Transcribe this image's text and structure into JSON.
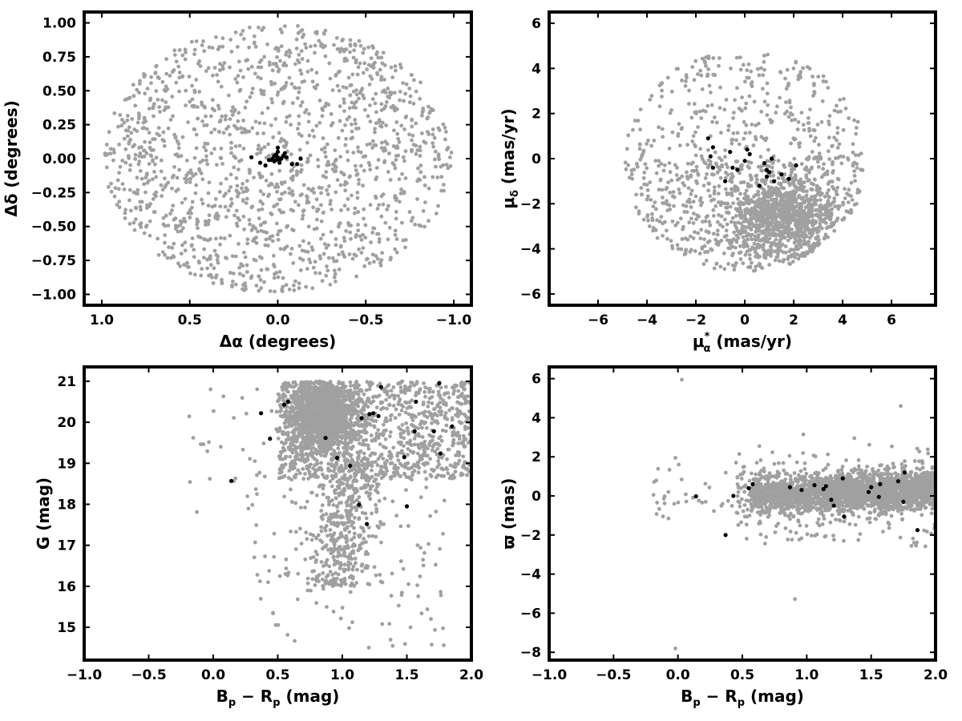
{
  "chart_data": [
    {
      "type": "scatter",
      "panel": "top-left",
      "xlabel": "Δα (degrees)",
      "ylabel": "Δδ (degrees)",
      "xlim": [
        1.1,
        -1.1
      ],
      "ylim": [
        -1.08,
        1.08
      ],
      "x_inverted": true,
      "xticks": [
        "1.0",
        "0.5",
        "0.0",
        "−0.5",
        "−1.0"
      ],
      "xtick_values": [
        1.0,
        0.5,
        0.0,
        -0.5,
        -1.0
      ],
      "yticks": [
        "−1.00",
        "−0.75",
        "−0.50",
        "−0.25",
        "0.00",
        "0.25",
        "0.50",
        "0.75",
        "1.00"
      ],
      "ytick_values": [
        -1.0,
        -0.75,
        -0.5,
        -0.25,
        0.0,
        0.25,
        0.5,
        0.75,
        1.0
      ],
      "series": [
        {
          "role": "field stars",
          "color": "#a0a0a0",
          "distribution": "uniform disk of radius 1.0 deg centered at (0,0)"
        },
        {
          "role": "members",
          "color": "#000000",
          "x": [
            0.15,
            0.1,
            0.07,
            0.05,
            0.03,
            0.02,
            0.01,
            0.0,
            -0.01,
            -0.02,
            -0.03,
            -0.05,
            -0.08,
            -0.11,
            -0.13,
            0.0,
            0.02,
            -0.01,
            0.04,
            -0.04,
            0.01,
            0.0,
            -0.02
          ],
          "y": [
            0.01,
            -0.03,
            -0.05,
            -0.01,
            0.0,
            0.02,
            0.03,
            0.01,
            -0.01,
            0.0,
            0.02,
            0.01,
            -0.04,
            -0.04,
            0.0,
            0.08,
            -0.02,
            -0.03,
            -0.01,
            0.04,
            -0.01,
            0.05,
            0.0
          ]
        }
      ]
    },
    {
      "type": "scatter",
      "panel": "top-right",
      "xlabel": "μα* (mas/yr)",
      "xlabel_main": "μ",
      "xlabel_sub": "α",
      "xlabel_sup": "*",
      "xlabel_unit": " (mas/yr)",
      "ylabel": "μδ (mas/yr)",
      "ylabel_main": "μ",
      "ylabel_sub": "δ",
      "ylabel_unit": " (mas/yr)",
      "xlim": [
        -8,
        7.8
      ],
      "ylim": [
        -6.5,
        6.5
      ],
      "xticks": [
        "−6",
        "−4",
        "−2",
        "0",
        "2",
        "4",
        "6"
      ],
      "xtick_values": [
        -6,
        -4,
        -2,
        0,
        2,
        4,
        6
      ],
      "yticks": [
        "−6",
        "−4",
        "−2",
        "0",
        "2",
        "4",
        "6"
      ],
      "ytick_values": [
        -6,
        -4,
        -2,
        0,
        2,
        4,
        6
      ],
      "series": [
        {
          "role": "field stars",
          "color": "#a0a0a0",
          "distribution": "disk of radius ~5 mas/yr centered at (0,0), dense clump near (1.5,-2.5)"
        },
        {
          "role": "members",
          "color": "#000000",
          "x": [
            -1.5,
            -1.3,
            -1.4,
            -0.6,
            0.1,
            0.2,
            -0.5,
            -0.3,
            0.6,
            0.9,
            1.0,
            1.2,
            1.5,
            1.8,
            2.1,
            -0.8,
            0.0,
            0.8,
            1.1,
            -1.3,
            0.9
          ],
          "y": [
            0.9,
            0.5,
            0.1,
            0.3,
            0.4,
            0.2,
            -0.4,
            -0.5,
            -1.2,
            -0.8,
            -0.6,
            -1.0,
            -0.7,
            -0.9,
            -0.3,
            -1.0,
            -0.1,
            -0.2,
            0.0,
            -0.4,
            -0.5
          ]
        }
      ]
    },
    {
      "type": "scatter",
      "panel": "bottom-left",
      "xlabel": "Bp − Rp (mag)",
      "xlabel_parts": [
        "B",
        "p",
        " − R",
        "p",
        " (mag)"
      ],
      "ylabel": "G (mag)",
      "xlim": [
        -1.0,
        2.0
      ],
      "ylim": [
        14.2,
        21.35
      ],
      "xticks": [
        "−1.0",
        "−0.5",
        "0.0",
        "0.5",
        "1.0",
        "1.5",
        "2.0"
      ],
      "xtick_values": [
        -1.0,
        -0.5,
        0.0,
        0.5,
        1.0,
        1.5,
        2.0
      ],
      "yticks": [
        "15",
        "16",
        "17",
        "18",
        "19",
        "20",
        "21"
      ],
      "ytick_values": [
        15,
        16,
        17,
        18,
        19,
        20,
        21
      ],
      "series": [
        {
          "role": "field stars",
          "color": "#a0a0a0",
          "distribution": "dense band G 18-21 at color 0.4-2.0, main sequence tail down to G~15"
        },
        {
          "role": "members",
          "color": "#000000",
          "x": [
            0.14,
            0.37,
            0.44,
            0.55,
            0.58,
            0.87,
            0.96,
            1.06,
            1.13,
            1.15,
            1.19,
            1.21,
            1.24,
            1.28,
            1.3,
            1.48,
            1.5,
            1.56,
            1.57,
            1.71,
            1.76,
            1.75,
            1.85
          ],
          "y": [
            18.57,
            20.22,
            19.6,
            20.43,
            20.5,
            19.62,
            19.13,
            18.94,
            17.99,
            20.1,
            17.52,
            20.2,
            20.22,
            20.15,
            20.86,
            19.15,
            17.95,
            19.78,
            20.5,
            19.78,
            19.24,
            20.95,
            19.9
          ]
        }
      ]
    },
    {
      "type": "scatter",
      "panel": "bottom-right",
      "xlabel": "Bp − Rp (mag)",
      "xlabel_parts": [
        "B",
        "p",
        " − R",
        "p",
        " (mag)"
      ],
      "ylabel": "ϖ (mas)",
      "xlim": [
        -1.0,
        2.0
      ],
      "ylim": [
        -8.4,
        6.6
      ],
      "xticks": [
        "−1.0",
        "−0.5",
        "0.0",
        "0.5",
        "1.0",
        "1.5",
        "2.0"
      ],
      "xtick_values": [
        -1.0,
        -0.5,
        0.0,
        0.5,
        1.0,
        1.5,
        2.0
      ],
      "yticks": [
        "−8",
        "−6",
        "−4",
        "−2",
        "0",
        "2",
        "4",
        "6"
      ],
      "ytick_values": [
        -8,
        -6,
        -4,
        -2,
        0,
        2,
        4,
        6
      ],
      "series": [
        {
          "role": "field stars",
          "color": "#a0a0a0",
          "distribution": "horizontal band around parallax 0 at color 0.4-2.0"
        },
        {
          "role": "members",
          "color": "#000000",
          "x": [
            0.14,
            0.37,
            0.43,
            0.55,
            0.58,
            0.87,
            0.96,
            1.06,
            1.13,
            1.15,
            1.19,
            1.21,
            1.28,
            1.29,
            1.48,
            1.5,
            1.56,
            1.57,
            1.71,
            1.75,
            1.76,
            1.86
          ],
          "y": [
            -0.02,
            -2.0,
            0.0,
            0.4,
            0.6,
            0.45,
            0.3,
            0.55,
            0.35,
            0.5,
            -0.2,
            -0.5,
            0.9,
            -1.05,
            0.2,
            0.45,
            -0.05,
            0.6,
            0.75,
            -0.3,
            1.2,
            -1.75
          ]
        }
      ]
    }
  ]
}
